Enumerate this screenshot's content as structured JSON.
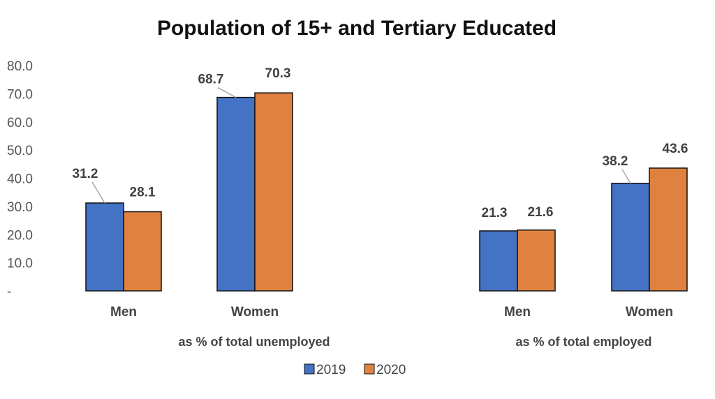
{
  "chart_data": {
    "type": "bar",
    "title": "Population of 15+ and Tertiary Educated",
    "ylim": [
      0,
      80
    ],
    "y_ticks": [
      "-",
      "10.0",
      "20.0",
      "30.0",
      "40.0",
      "50.0",
      "60.0",
      "70.0",
      "80.0"
    ],
    "groups": [
      {
        "label": "as % of total unemployed",
        "categories": [
          "Men",
          "Women"
        ]
      },
      {
        "label": "as % of total employed",
        "categories": [
          "Men",
          "Women"
        ]
      }
    ],
    "series": [
      {
        "name": "2019",
        "color": "#4472C4",
        "values": [
          31.2,
          68.7,
          21.3,
          38.2
        ]
      },
      {
        "name": "2020",
        "color": "#E0823F",
        "values": [
          28.1,
          70.3,
          21.6,
          43.6
        ]
      }
    ],
    "legend": "bottom",
    "grid": false
  }
}
